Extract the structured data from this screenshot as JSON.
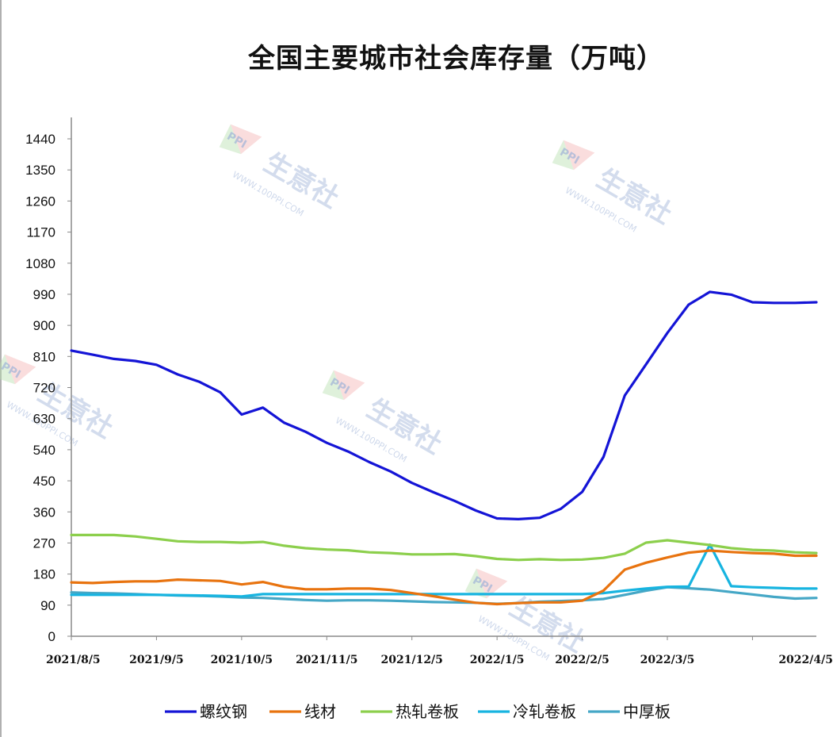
{
  "chart_data": {
    "type": "line",
    "title": "全国主要城市社会库存量（万吨）",
    "xlabel": "",
    "ylabel": "",
    "ylim": [
      0,
      1440
    ],
    "y_ticks": [
      0,
      90,
      180,
      270,
      360,
      450,
      540,
      630,
      720,
      810,
      900,
      990,
      1080,
      1170,
      1260,
      1350,
      1440
    ],
    "x_tick_labels": [
      "2021/8/5",
      "2021/9/5",
      "2021/10/5",
      "2021/11/5",
      "2021/12/5",
      "2022/1/5",
      "2022/2/5",
      "2022/3/5",
      "2022/4/5"
    ],
    "x_tick_positions": [
      0,
      4,
      8,
      12,
      16,
      20,
      24,
      28,
      32
    ],
    "grid": false,
    "legend_position": "bottom",
    "series": [
      {
        "name": "螺纹钢",
        "color": "#1414d6",
        "values": [
          827,
          815,
          803,
          797,
          786,
          758,
          737,
          706,
          642,
          662,
          618,
          592,
          560,
          535,
          504,
          477,
          444,
          417,
          392,
          364,
          341,
          339,
          343,
          369,
          418,
          519,
          697,
          787,
          878,
          960,
          997,
          989,
          967,
          965,
          965,
          967
        ]
      },
      {
        "name": "线材",
        "color": "#e8730f",
        "values": [
          156,
          154,
          157,
          159,
          159,
          164,
          162,
          160,
          150,
          157,
          143,
          136,
          136,
          138,
          138,
          134,
          125,
          116,
          106,
          97,
          93,
          96,
          98,
          98,
          103,
          132,
          193,
          213,
          228,
          242,
          248,
          244,
          241,
          239,
          233,
          233
        ]
      },
      {
        "name": "热轧卷板",
        "color": "#8ccf4c",
        "values": [
          293,
          293,
          293,
          289,
          282,
          275,
          273,
          273,
          271,
          273,
          262,
          255,
          251,
          249,
          243,
          241,
          237,
          237,
          238,
          232,
          224,
          221,
          223,
          221,
          222,
          227,
          239,
          271,
          278,
          271,
          264,
          255,
          250,
          248,
          243,
          241
        ]
      },
      {
        "name": "冷轧卷板",
        "color": "#17b4e0",
        "values": [
          120,
          120,
          120,
          120,
          120,
          119,
          118,
          117,
          115,
          122,
          122,
          122,
          122,
          122,
          122,
          122,
          122,
          122,
          122,
          122,
          122,
          122,
          122,
          122,
          122,
          125,
          132,
          138,
          143,
          144,
          265,
          145,
          142,
          140,
          138,
          138
        ]
      },
      {
        "name": "中厚板",
        "color": "#45a7c6",
        "values": [
          127,
          125,
          124,
          122,
          120,
          118,
          117,
          115,
          112,
          111,
          108,
          105,
          103,
          104,
          104,
          103,
          101,
          99,
          98,
          97,
          94,
          96,
          100,
          102,
          104,
          108,
          120,
          132,
          142,
          139,
          135,
          128,
          121,
          114,
          109,
          111
        ]
      }
    ]
  },
  "watermark": {
    "logo": "PPI",
    "brand": "生意社",
    "url": "WWW.100PPI.COM"
  }
}
